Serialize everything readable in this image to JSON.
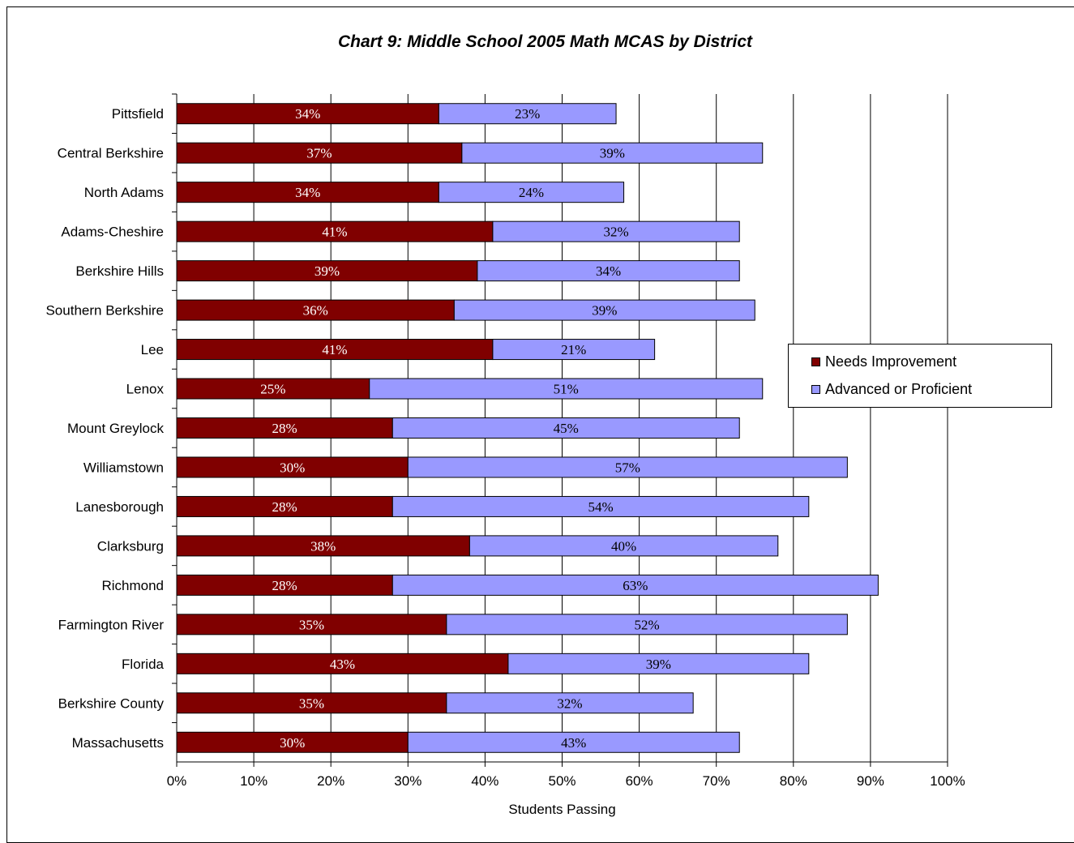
{
  "chart_data": {
    "type": "bar",
    "orientation": "horizontal",
    "stacked": true,
    "title": "Chart 9: Middle School 2005 Math MCAS by District",
    "xlabel": "Students Passing",
    "ylabel": "",
    "xlim": [
      0,
      100
    ],
    "x_ticks": [
      "0%",
      "10%",
      "20%",
      "30%",
      "40%",
      "50%",
      "60%",
      "70%",
      "80%",
      "90%",
      "100%"
    ],
    "grid": "vertical gridlines",
    "legend_position": "right",
    "categories": [
      "Pittsfield",
      "Central Berkshire",
      "North Adams",
      "Adams-Cheshire",
      "Berkshire Hills",
      "Southern Berkshire",
      "Lee",
      "Lenox",
      "Mount Greylock",
      "Williamstown",
      "Lanesborough",
      "Clarksburg",
      "Richmond",
      "Farmington River",
      "Florida",
      "Berkshire County",
      "Massachusetts"
    ],
    "series": [
      {
        "name": "Needs Improvement",
        "color": "#800000",
        "label_color": "#ffffff",
        "values": [
          34,
          37,
          34,
          41,
          39,
          36,
          41,
          25,
          28,
          30,
          28,
          38,
          28,
          35,
          43,
          35,
          30
        ],
        "labels": [
          "34%",
          "37%",
          "34%",
          "41%",
          "39%",
          "36%",
          "41%",
          "25%",
          "28%",
          "30%",
          "28%",
          "38%",
          "28%",
          "35%",
          "43%",
          "35%",
          "30%"
        ]
      },
      {
        "name": "Advanced or Proficient",
        "color": "#9999ff",
        "label_color": "#000000",
        "values": [
          23,
          39,
          24,
          32,
          34,
          39,
          21,
          51,
          45,
          57,
          54,
          40,
          63,
          52,
          39,
          32,
          43
        ],
        "labels": [
          "23%",
          "39%",
          "24%",
          "32%",
          "34%",
          "39%",
          "21%",
          "51%",
          "45%",
          "57%",
          "54%",
          "40%",
          "63%",
          "52%",
          "39%",
          "32%",
          "43%"
        ]
      }
    ]
  }
}
